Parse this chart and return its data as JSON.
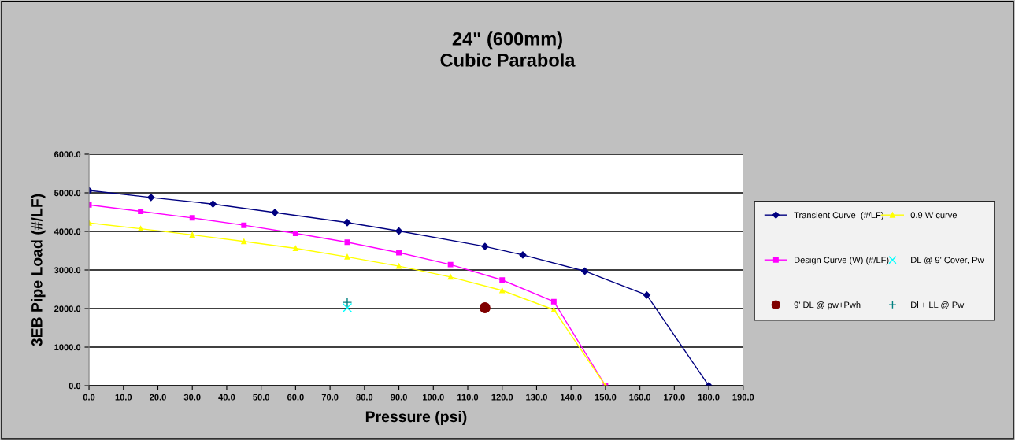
{
  "chart_data": {
    "type": "line",
    "title": "24\" (600mm)\nCubic Parabola",
    "xlabel": "Pressure (psi)",
    "ylabel": "3EB Pipe Load (#/LF)",
    "xlim": [
      0,
      190
    ],
    "ylim": [
      0,
      6000
    ],
    "xticks": [
      {
        "value": 0,
        "label": "0.0"
      },
      {
        "value": 10,
        "label": "10.0"
      },
      {
        "value": 20,
        "label": "20.0"
      },
      {
        "value": 30,
        "label": "30.0"
      },
      {
        "value": 40,
        "label": "40.0"
      },
      {
        "value": 50,
        "label": "50.0"
      },
      {
        "value": 60,
        "label": "60.0"
      },
      {
        "value": 70,
        "label": "70.0"
      },
      {
        "value": 80,
        "label": "80.0"
      },
      {
        "value": 90,
        "label": "90.0"
      },
      {
        "value": 100,
        "label": "100.0"
      },
      {
        "value": 110,
        "label": "110.0"
      },
      {
        "value": 120,
        "label": "120.0"
      },
      {
        "value": 130,
        "label": "130.0"
      },
      {
        "value": 140,
        "label": "140.0"
      },
      {
        "value": 150,
        "label": "150.0"
      },
      {
        "value": 160,
        "label": "160.0"
      },
      {
        "value": 170,
        "label": "170.0"
      },
      {
        "value": 180,
        "label": "180.0"
      },
      {
        "value": 190,
        "label": "190.0"
      }
    ],
    "yticks": [
      {
        "value": 0,
        "label": "0.0"
      },
      {
        "value": 1000,
        "label": "1000.0"
      },
      {
        "value": 2000,
        "label": "2000.0"
      },
      {
        "value": 3000,
        "label": "3000.0"
      },
      {
        "value": 4000,
        "label": "4000.0"
      },
      {
        "value": 5000,
        "label": "5000.0"
      },
      {
        "value": 6000,
        "label": "6000.0"
      }
    ],
    "grid": "y",
    "legend": "right",
    "series": [
      {
        "name": "Transient Curve  (#/LF)",
        "color": "#000080",
        "marker": "diamond",
        "x": [
          0,
          18,
          36,
          54,
          75,
          90,
          115,
          126,
          144,
          162,
          180
        ],
        "values": [
          5060,
          4880,
          4710,
          4490,
          4230,
          4010,
          3610,
          3390,
          2970,
          2350,
          0
        ]
      },
      {
        "name": "Design Curve (W) (#/LF)",
        "color": "#ff00ff",
        "marker": "square",
        "x": [
          0,
          15,
          30,
          45,
          60,
          75,
          90,
          105,
          120,
          135,
          150
        ],
        "values": [
          4690,
          4520,
          4350,
          4160,
          3950,
          3720,
          3450,
          3140,
          2740,
          2180,
          0
        ]
      },
      {
        "name": "9' DL @ pw+Pwh",
        "type": "scatter",
        "color": "#800000",
        "marker": "circle",
        "x": [
          115
        ],
        "values": [
          2020
        ]
      },
      {
        "name": "0.9 W curve",
        "color": "#ffff00",
        "marker": "triangle",
        "x": [
          0,
          15,
          30,
          45,
          60,
          75,
          90,
          105,
          120,
          135,
          150
        ],
        "values": [
          4220,
          4070,
          3910,
          3740,
          3560,
          3340,
          3100,
          2820,
          2470,
          1970,
          0
        ]
      },
      {
        "name": "DL @ 9' Cover, Pw",
        "type": "scatter",
        "color": "#00ffff",
        "marker": "x",
        "x": [
          75
        ],
        "values": [
          2020
        ]
      },
      {
        "name": "Dl + LL @ Pw",
        "type": "scatter",
        "color": "#008080",
        "marker": "plus",
        "x": [
          75
        ],
        "values": [
          2160
        ]
      }
    ]
  }
}
